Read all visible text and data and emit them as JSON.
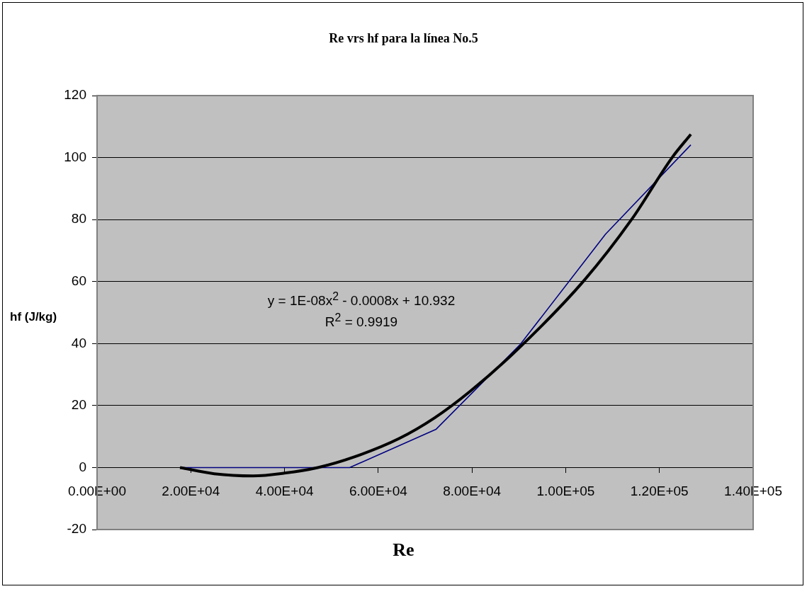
{
  "chart_data": {
    "type": "line",
    "title": "Re vrs hf para la línea No.5",
    "xlabel": "Re",
    "ylabel": "hf (J/kg)",
    "xlim": [
      0,
      140000
    ],
    "ylim": [
      -20,
      120
    ],
    "xticks": [
      {
        "value": 0,
        "label": "0.00E+00"
      },
      {
        "value": 20000,
        "label": "2.00E+04"
      },
      {
        "value": 40000,
        "label": "4.00E+04"
      },
      {
        "value": 60000,
        "label": "6.00E+04"
      },
      {
        "value": 80000,
        "label": "8.00E+04"
      },
      {
        "value": 100000,
        "label": "1.00E+05"
      },
      {
        "value": 120000,
        "label": "1.20E+05"
      },
      {
        "value": 140000,
        "label": "1.40E+05"
      }
    ],
    "yticks": [
      -20,
      0,
      20,
      40,
      60,
      80,
      100,
      120
    ],
    "grid": "y",
    "legend": false,
    "marker": "none",
    "line_style": "solid",
    "series": [
      {
        "color": "#000080",
        "x": [
          17700,
          53900,
          72300,
          90300,
          108500,
          126700
        ],
        "values": [
          0,
          0,
          12.3,
          39.7,
          75.3,
          104.1
        ]
      },
      {
        "type": "line",
        "color": "#000000",
        "x": [
          17700,
          25000,
          33300,
          40000,
          47100,
          55000,
          64500,
          72000,
          79700,
          90000,
          103900,
          114100,
          122700,
          126700
        ],
        "values": [
          0,
          -2.0,
          -2.7,
          -1.8,
          0,
          3.5,
          9.4,
          16,
          24.7,
          38.5,
          60.3,
          80.1,
          100,
          107.5
        ]
      }
    ],
    "annotations": [
      "y = 1E-08x$^{2}$ - 0.0008x + 10.932",
      "R$^{2}$ = 0.9919"
    ]
  }
}
